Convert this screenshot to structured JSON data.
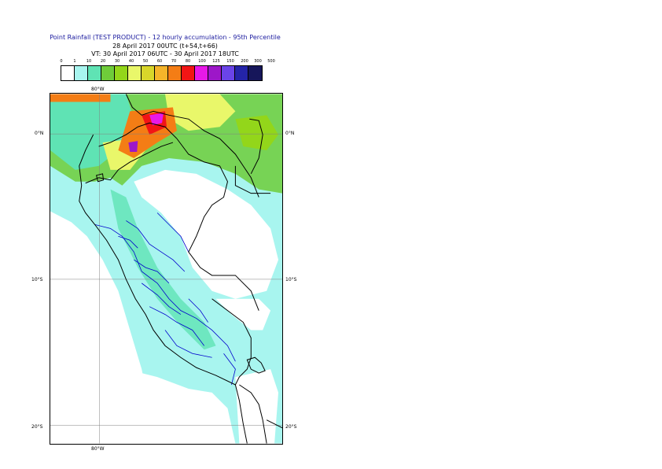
{
  "title": {
    "line1": "Point Rainfall (TEST PRODUCT) - 12 hourly accumulation - 95th Percentile",
    "line2": "28 April 2017 00UTC (t+54,t+66)",
    "line3": "VT: 30 April 2017 06UTC - 30 April 2017 18UTC"
  },
  "legend": {
    "ticks": [
      "0",
      "1",
      "10",
      "20",
      "30",
      "40",
      "50",
      "60",
      "70",
      "80",
      "100",
      "125",
      "150",
      "200",
      "300",
      "500"
    ],
    "colors": [
      "#ffffff",
      "#a8f5ef",
      "#5fe3b4",
      "#6fcc3a",
      "#93d61a",
      "#e9f76a",
      "#d8d62a",
      "#f5b42a",
      "#f47d15",
      "#f21515",
      "#e819e8",
      "#9d17c8",
      "#6a44e8",
      "#2424a8",
      "#16165a"
    ]
  },
  "axes": {
    "lon_top": "80°W",
    "lon_bottom": "80°W",
    "lat_left": [
      "0°N",
      "10°S",
      "20°S"
    ],
    "lat_right": [
      "0°N",
      "10°S",
      "20°S"
    ]
  },
  "map_colors": {
    "land": "#ffffff",
    "ocean_light": "#a8f5ef",
    "gridline": "#808080",
    "country_border": "#000000",
    "region_border": "#0000cc"
  }
}
